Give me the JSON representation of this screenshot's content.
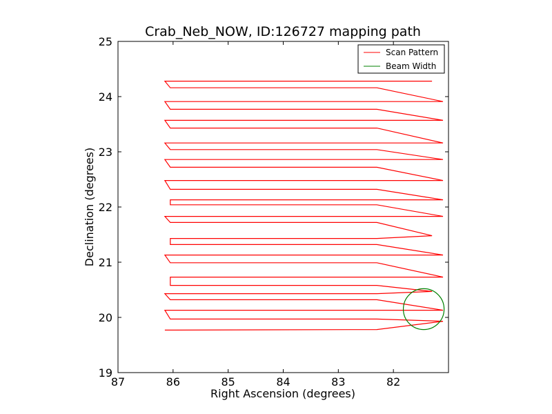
{
  "chart_data": {
    "type": "line",
    "title": "Crab_Neb_NOW, ID:126727 mapping path",
    "xlabel": "Right Ascension (degrees)",
    "ylabel": "Declination (degrees)",
    "xlim": [
      87,
      81
    ],
    "ylim": [
      19,
      25
    ],
    "x_inverted": true,
    "xticks": [
      "87",
      "86",
      "85",
      "84",
      "83",
      "82"
    ],
    "yticks": [
      "19",
      "20",
      "21",
      "22",
      "23",
      "24",
      "25"
    ],
    "legend": {
      "placement": "top-right",
      "entries": [
        {
          "label": "Scan Pattern",
          "color": "#ff0000"
        },
        {
          "label": "Beam Width",
          "color": "#008000"
        }
      ]
    },
    "series": [
      {
        "name": "Scan Pattern",
        "color": "#ff0000",
        "points": [
          [
            86.15,
            19.77
          ],
          [
            82.3,
            19.78
          ],
          [
            82.3,
            19.78
          ],
          [
            81.1,
            19.93
          ],
          [
            82.3,
            19.97
          ],
          [
            86.05,
            19.97
          ],
          [
            86.15,
            20.13
          ],
          [
            82.3,
            20.13
          ],
          [
            81.1,
            20.13
          ],
          [
            82.3,
            20.32
          ],
          [
            86.05,
            20.32
          ],
          [
            86.15,
            20.43
          ],
          [
            82.3,
            20.43
          ],
          [
            81.3,
            20.47
          ],
          [
            82.3,
            20.58
          ],
          [
            86.05,
            20.58
          ],
          [
            86.05,
            20.73
          ],
          [
            82.3,
            20.73
          ],
          [
            81.1,
            20.73
          ],
          [
            82.3,
            20.99
          ],
          [
            86.05,
            20.99
          ],
          [
            86.15,
            21.13
          ],
          [
            82.3,
            21.13
          ],
          [
            81.1,
            21.13
          ],
          [
            82.3,
            21.32
          ],
          [
            86.05,
            21.32
          ],
          [
            86.05,
            21.43
          ],
          [
            82.3,
            21.43
          ],
          [
            81.3,
            21.48
          ],
          [
            82.3,
            21.72
          ],
          [
            86.05,
            21.72
          ],
          [
            86.15,
            21.83
          ],
          [
            82.3,
            21.83
          ],
          [
            81.1,
            21.83
          ],
          [
            82.3,
            22.04
          ],
          [
            86.05,
            22.04
          ],
          [
            86.05,
            22.13
          ],
          [
            82.3,
            22.13
          ],
          [
            81.1,
            22.13
          ],
          [
            82.3,
            22.32
          ],
          [
            86.05,
            22.32
          ],
          [
            86.15,
            22.48
          ],
          [
            82.3,
            22.48
          ],
          [
            81.1,
            22.48
          ],
          [
            82.3,
            22.72
          ],
          [
            86.05,
            22.72
          ],
          [
            86.15,
            22.86
          ],
          [
            82.3,
            22.86
          ],
          [
            81.1,
            22.86
          ],
          [
            82.3,
            23.04
          ],
          [
            86.05,
            23.04
          ],
          [
            86.15,
            23.16
          ],
          [
            82.3,
            23.16
          ],
          [
            81.1,
            23.16
          ],
          [
            82.3,
            23.43
          ],
          [
            86.05,
            23.43
          ],
          [
            86.15,
            23.57
          ],
          [
            82.3,
            23.57
          ],
          [
            81.1,
            23.57
          ],
          [
            82.3,
            23.77
          ],
          [
            86.05,
            23.77
          ],
          [
            86.15,
            23.91
          ],
          [
            82.3,
            23.91
          ],
          [
            81.1,
            23.91
          ],
          [
            82.3,
            24.16
          ],
          [
            86.05,
            24.16
          ],
          [
            86.15,
            24.28
          ],
          [
            82.3,
            24.28
          ],
          [
            81.3,
            24.28
          ]
        ]
      },
      {
        "name": "Beam Width",
        "color": "#008000",
        "circle": {
          "center_ra": 81.45,
          "center_dec": 20.15,
          "radius_deg": 0.37
        }
      }
    ]
  }
}
